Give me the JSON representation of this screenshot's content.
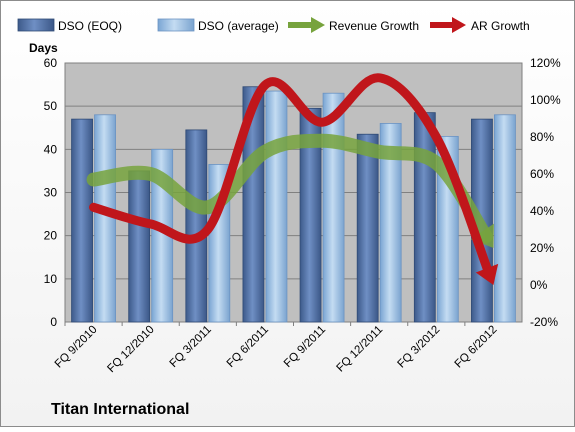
{
  "chart_data": {
    "type": "bar",
    "title": "Titan International",
    "ylabel": "Days",
    "ylim": [
      0,
      60
    ],
    "y2lim": [
      -0.2,
      1.2
    ],
    "y_ticks": [
      "0",
      "10",
      "20",
      "30",
      "40",
      "50",
      "60"
    ],
    "y2_ticks": [
      "-20%",
      "0%",
      "20%",
      "40%",
      "60%",
      "80%",
      "100%",
      "120%"
    ],
    "categories": [
      "FQ 9/2010",
      "FQ 12/2010",
      "FQ 3/2011",
      "FQ 6/2011",
      "FQ 9/2011",
      "FQ 12/2011",
      "FQ 3/2012",
      "FQ 6/2012"
    ],
    "grid": true,
    "legend_position": "top",
    "series": [
      {
        "name": "DSO (EOQ)",
        "kind": "bar",
        "axis": "left",
        "color": "#4f6fa3",
        "values": [
          47,
          35,
          44.5,
          54.5,
          49.5,
          43.5,
          48.5,
          47
        ]
      },
      {
        "name": "DSO (average)",
        "kind": "bar",
        "axis": "left",
        "color": "#9ec3e6",
        "values": [
          48,
          40,
          36.5,
          53.5,
          53,
          46,
          43,
          48
        ]
      },
      {
        "name": "Revenue Growth",
        "kind": "line",
        "axis": "right",
        "color": "#77a33d",
        "values": [
          0.57,
          0.6,
          0.42,
          0.72,
          0.78,
          0.72,
          0.66,
          0.2
        ]
      },
      {
        "name": "AR Growth",
        "kind": "line",
        "axis": "right",
        "color": "#c0161b",
        "values": [
          0.42,
          0.33,
          0.3,
          1.08,
          0.88,
          1.12,
          0.8,
          0.0
        ]
      }
    ],
    "colors": {
      "plot_background": "#bfbfbf",
      "grid": "#808080",
      "border": "#7f7f7f"
    }
  }
}
